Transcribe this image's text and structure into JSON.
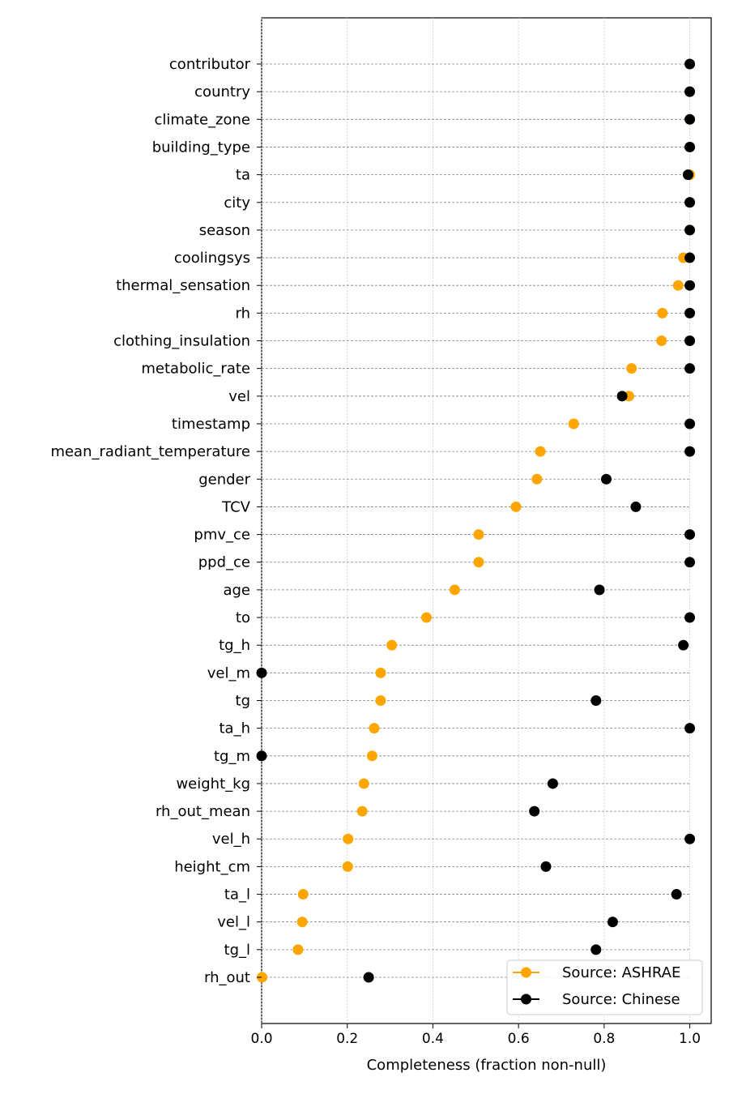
{
  "chart_data": {
    "type": "scatter",
    "title": "",
    "xlabel": "Completeness (fraction non-null)",
    "ylabel": "",
    "xlim": [
      0.0,
      1.05
    ],
    "xticks": [
      0.0,
      0.2,
      0.4,
      0.6,
      0.8,
      1.0
    ],
    "xtick_labels": [
      "0.0",
      "0.2",
      "0.4",
      "0.6",
      "0.8",
      "1.0"
    ],
    "grid": "x-axis dotted",
    "legend_position": "bottom-right",
    "categories": [
      "contributor",
      "country",
      "climate_zone",
      "building_type",
      "ta",
      "city",
      "season",
      "coolingsys",
      "thermal_sensation",
      "rh",
      "clothing_insulation",
      "metabolic_rate",
      "vel",
      "timestamp",
      "mean_radiant_temperature",
      "gender",
      "TCV",
      "pmv_ce",
      "ppd_ce",
      "age",
      "to",
      "tg_h",
      "vel_m",
      "tg",
      "ta_h",
      "tg_m",
      "weight_kg",
      "rh_out_mean",
      "vel_h",
      "height_cm",
      "ta_l",
      "vel_l",
      "tg_l",
      "rh_out"
    ],
    "series": [
      {
        "name": "Source: ASHRAE",
        "color": "#FFA500",
        "values": [
          1.0,
          1.0,
          1.0,
          1.0,
          1.0,
          1.0,
          1.0,
          0.985,
          0.973,
          0.936,
          0.934,
          0.864,
          0.858,
          0.729,
          0.651,
          0.643,
          0.594,
          0.507,
          0.507,
          0.451,
          0.385,
          0.304,
          0.278,
          0.278,
          0.263,
          0.258,
          0.239,
          0.235,
          0.202,
          0.201,
          0.097,
          0.095,
          0.085,
          0.001
        ]
      },
      {
        "name": "Source: Chinese",
        "color": "#000000",
        "values": [
          1.0,
          1.0,
          1.0,
          1.0,
          0.996,
          1.0,
          1.0,
          1.0,
          1.0,
          1.0,
          1.0,
          1.0,
          0.842,
          1.0,
          1.0,
          0.805,
          0.874,
          1.0,
          1.0,
          0.789,
          1.0,
          0.985,
          0.0,
          0.781,
          1.0,
          0.0,
          0.68,
          0.637,
          1.0,
          0.664,
          0.969,
          0.82,
          0.781,
          0.25
        ]
      }
    ]
  }
}
